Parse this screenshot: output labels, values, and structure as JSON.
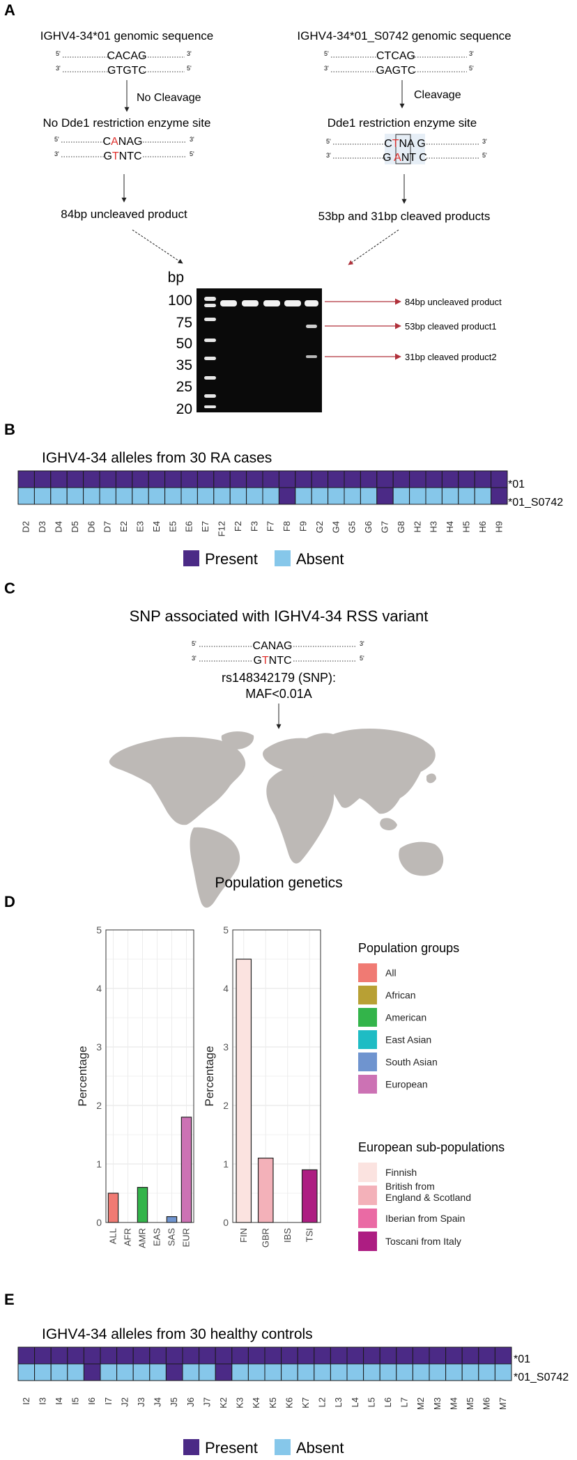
{
  "panel_a": {
    "label": "A",
    "left": {
      "title": "IGHV4-34*01 genomic sequence",
      "seq_top": "CACAG",
      "seq_bottom": "GTGTC",
      "arrow_label": "No Cleavage",
      "site_title": "No Dde1 restriction enzyme site",
      "site_top": {
        "pre": "C",
        "hl": "A",
        "post": "NAG"
      },
      "site_bottom": {
        "pre": "G",
        "hl": "T",
        "post": "NTC"
      },
      "product": "84bp uncleaved product"
    },
    "right": {
      "title": "IGHV4-34*01_S0742 genomic sequence",
      "seq_top": "CTCAG",
      "seq_bottom": "GAGTC",
      "arrow_label": "Cleavage",
      "site_title": "Dde1 restriction enzyme site",
      "site_top": {
        "pre": "C",
        "hl": "T",
        "post": "NA G"
      },
      "site_bottom": {
        "pre": "G ",
        "hl": "A",
        "post": "NT C"
      },
      "product": "53bp and 31bp cleaved products"
    },
    "prime5": "5'",
    "prime3": "3'",
    "gel": {
      "unit": "bp",
      "ladder": [
        "100",
        "75",
        "50",
        "35",
        "25",
        "20"
      ],
      "annotations": [
        "84bp uncleaved product",
        "53bp cleaved product1",
        "31bp cleaved product2"
      ]
    }
  },
  "panel_b": {
    "label": "B",
    "title": "IGHV4-34 alleles from 30 RA cases",
    "row_labels": [
      "*01",
      "*01_S0742"
    ],
    "columns": [
      "D2",
      "D3",
      "D4",
      "D5",
      "D6",
      "D7",
      "E2",
      "E3",
      "E4",
      "E5",
      "E6",
      "E7",
      "F12",
      "F2",
      "F3",
      "F7",
      "F8",
      "F9",
      "G2",
      "G4",
      "G5",
      "G6",
      "G7",
      "G8",
      "H2",
      "H3",
      "H4",
      "H5",
      "H6",
      "H9"
    ],
    "row1_present": [
      1,
      1,
      1,
      1,
      1,
      1,
      1,
      1,
      1,
      1,
      1,
      1,
      1,
      1,
      1,
      1,
      1,
      1,
      1,
      1,
      1,
      1,
      1,
      1,
      1,
      1,
      1,
      1,
      1,
      1
    ],
    "row2_present": [
      0,
      0,
      0,
      0,
      0,
      0,
      0,
      0,
      0,
      0,
      0,
      0,
      0,
      0,
      0,
      0,
      1,
      0,
      0,
      0,
      0,
      0,
      1,
      0,
      0,
      0,
      0,
      0,
      0,
      1
    ],
    "legend": {
      "present": "Present",
      "absent": "Absent"
    }
  },
  "panel_c": {
    "label": "C",
    "title": "SNP associated with IGHV4-34 RSS variant",
    "seq_top": "CANAG",
    "seq_bottom": {
      "pre": "G",
      "hl": "T",
      "post": "NTC"
    },
    "snp_line1": "rs148342179 (SNP):",
    "snp_line2": "MAF<0.01A",
    "map_caption": "Population genetics"
  },
  "panel_d": {
    "label": "D",
    "legend_groups_title": "Population groups",
    "legend_sub_title": "European sub-populations"
  },
  "chart_data": [
    {
      "type": "bar",
      "ylabel": "Percentage",
      "ylim": [
        0,
        5
      ],
      "yticks": [
        0,
        1,
        2,
        3,
        4,
        5
      ],
      "categories": [
        "ALL",
        "AFR",
        "AMR",
        "EAS",
        "SAS",
        "EUR"
      ],
      "values": [
        0.5,
        0,
        0.6,
        0,
        0.1,
        1.8
      ],
      "legend": [
        "All",
        "African",
        "American",
        "East Asian",
        "South Asian",
        "European"
      ],
      "colors": [
        "#f07a73",
        "#b8a034",
        "#33b44a",
        "#1ebcc4",
        "#6f94cf",
        "#cc72b4"
      ]
    },
    {
      "type": "bar",
      "ylabel": "Percentage",
      "ylim": [
        0,
        5
      ],
      "yticks": [
        0,
        1,
        2,
        3,
        4,
        5
      ],
      "categories": [
        "FIN",
        "GBR",
        "IBS",
        "TSI"
      ],
      "values": [
        4.5,
        1.1,
        0,
        0.9
      ],
      "legend": [
        "Finnish",
        "British from England & Scotland",
        "Iberian from Spain",
        "Toscani from Italy"
      ],
      "colors": [
        "#fbe3e0",
        "#f3b1b9",
        "#ea6aa4",
        "#ad1d82"
      ]
    }
  ],
  "panel_e": {
    "label": "E",
    "title": "IGHV4-34 alleles from 30 healthy controls",
    "row_labels": [
      "*01",
      "*01_S0742"
    ],
    "columns": [
      "I2",
      "I3",
      "I4",
      "I5",
      "I6",
      "I7",
      "J2",
      "J3",
      "J4",
      "J5",
      "J6",
      "J7",
      "K2",
      "K3",
      "K4",
      "K5",
      "K6",
      "K7",
      "L2",
      "L3",
      "L4",
      "L5",
      "L6",
      "L7",
      "M2",
      "M3",
      "M4",
      "M5",
      "M6",
      "M7"
    ],
    "row1_present": [
      1,
      1,
      1,
      1,
      1,
      1,
      1,
      1,
      1,
      1,
      1,
      1,
      1,
      1,
      1,
      1,
      1,
      1,
      1,
      1,
      1,
      1,
      1,
      1,
      1,
      1,
      1,
      1,
      1,
      1
    ],
    "row2_present": [
      0,
      0,
      0,
      0,
      1,
      0,
      0,
      0,
      0,
      1,
      0,
      0,
      1,
      0,
      0,
      0,
      0,
      0,
      0,
      0,
      0,
      0,
      0,
      0,
      0,
      0,
      0,
      0,
      0,
      0
    ],
    "legend": {
      "present": "Present",
      "absent": "Absent"
    }
  },
  "colors": {
    "present": "#4b2a86",
    "absent": "#86c7ea",
    "map": "#bdb9b6",
    "arrow_red": "#b0303a",
    "highlight": "#e0322e"
  }
}
